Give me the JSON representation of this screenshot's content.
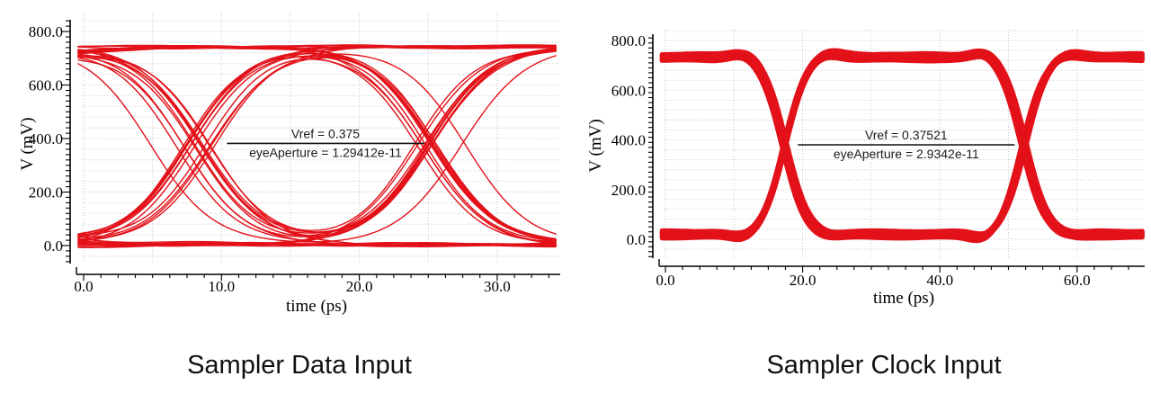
{
  "page": {
    "background": "#ffffff",
    "colors": {
      "trace_red": "#e31119",
      "grid_gray": "#c8c8c8",
      "axis_black": "#000000",
      "annotation_black": "#1b1b1b"
    }
  },
  "chart_data": [
    {
      "type": "line",
      "subtype": "eye-diagram",
      "title": "Sampler Data Input",
      "xlabel": "time (ps)",
      "ylabel": "V (mV)",
      "xlim_ps": [
        0,
        34.5
      ],
      "ylim_mV": [
        0,
        800
      ],
      "x_ticks": [
        0,
        10,
        20,
        30
      ],
      "x_tick_labels": [
        "0.0",
        "10.0",
        "20.0",
        "30.0"
      ],
      "x_minor_step_ps": 1.25,
      "y_ticks": [
        0,
        200,
        400,
        600,
        800
      ],
      "y_tick_labels": [
        "0.0",
        "200.0",
        "400.0",
        "600.0",
        "800.0"
      ],
      "y_minor_step_mV": 20,
      "grid": {
        "style": "dotted",
        "h_step_mV": 40,
        "v_step_ps": 5
      },
      "legend": "none",
      "trace_color": "#e31119",
      "eye": {
        "style": "data",
        "high_mV": 745,
        "low_mV": 4,
        "crossing_times_ps": [
          8.3,
          24.8
        ],
        "bit_period_ps": 16.5,
        "transition_tau_ps": 2.3,
        "jitter_ps": [
          2.4,
          1.4
        ],
        "stroke_width": 1.4,
        "sample_step": 0.35,
        "seed": 11
      },
      "annotation": {
        "vref_text": "Vref = 0.375",
        "aperture_text": "eyeAperture = 1.29412e-11",
        "vref_V": 0.375,
        "eye_aperture_s": 1.29412e-11,
        "line_y_mV": 382,
        "line_from_ps": 10.4,
        "line_to_ps": 24.7
      }
    },
    {
      "type": "line",
      "subtype": "eye-diagram",
      "title": "Sampler Clock Input",
      "xlabel": "time (ps)",
      "ylabel": "V (mV)",
      "xlim_ps": [
        0,
        69.8
      ],
      "ylim_mV": [
        0,
        800
      ],
      "x_ticks": [
        0,
        20,
        40,
        60
      ],
      "x_tick_labels": [
        "0.0",
        "20.0",
        "40.0",
        "60.0"
      ],
      "x_minor_step_ps": 2.5,
      "y_ticks": [
        0,
        200,
        400,
        600,
        800
      ],
      "y_tick_labels": [
        "0.0",
        "200.0",
        "400.0",
        "600.0",
        "800.0"
      ],
      "y_minor_step_mV": 20,
      "grid": {
        "style": "dotted",
        "h_step_mV": 40,
        "v_step_ps": 10
      },
      "legend": "none",
      "trace_color": "#e31119",
      "eye": {
        "style": "clock",
        "high_mV": 733,
        "low_mV": 20,
        "crossing_times_ps": [
          17.3,
          52.3
        ],
        "clock_period_ps": 70,
        "transition_tau_ps": 1.6,
        "jitter_ps": [
          0.7,
          0.7
        ],
        "band_mV": 13,
        "n_band": 11,
        "stroke_width": 5,
        "sample_step": 0.5,
        "seed": 29
      },
      "annotation": {
        "vref_text": "Vref = 0.37521",
        "aperture_text": "eyeAperture = 2.9342e-11",
        "vref_V": 0.37521,
        "eye_aperture_s": 2.9342e-11,
        "line_y_mV": 380,
        "line_from_ps": 19.3,
        "line_to_ps": 50.9
      }
    }
  ]
}
